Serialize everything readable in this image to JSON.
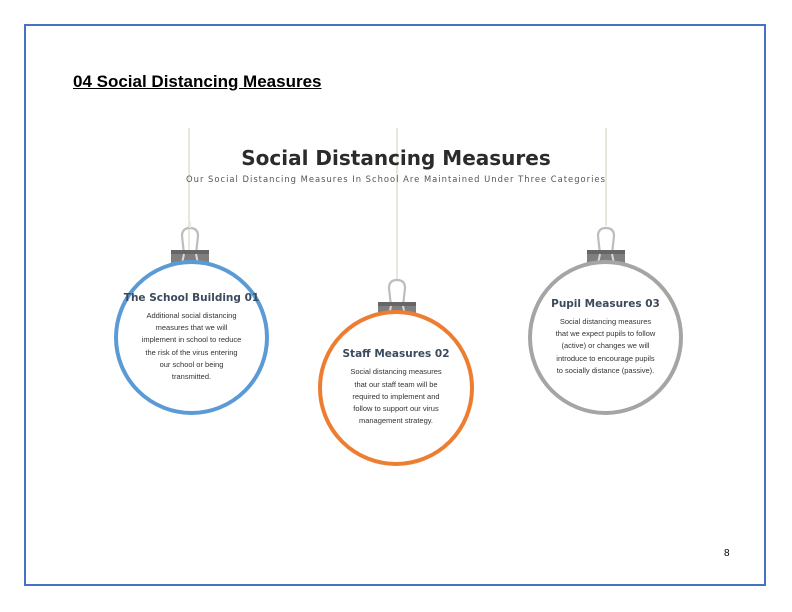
{
  "section_heading": "04 Social Distancing Measures",
  "main_title": "Social Distancing Measures",
  "subtitle": "Our Social Distancing Measures In School Are Maintained Under Three Categories",
  "ornaments": [
    {
      "title": "The School Building 01",
      "body": [
        "Additional social distancing",
        "measures that we will",
        "implement  in school to reduce",
        "the risk of the virus entering",
        "our school or being",
        "transmitted."
      ],
      "ring_color": "#5b9bd5"
    },
    {
      "title": "Staff Measures 02",
      "body": [
        "Social distancing measures",
        "that our staff team will be",
        "required to implement and",
        "follow to support our virus",
        "management strategy."
      ],
      "ring_color": "#ed7d31"
    },
    {
      "title": "Pupil Measures 03",
      "body": [
        "Social distancing measures",
        "that we expect pupils to follow",
        "(active) or changes we will",
        "introduce to encourage pupils",
        "to socially distance (passive)."
      ],
      "ring_color": "#a5a5a5"
    }
  ],
  "colors": {
    "border": "#4472c4",
    "string": "#e9e6dc",
    "clip": "#7f7f7f"
  },
  "page_number": "8"
}
